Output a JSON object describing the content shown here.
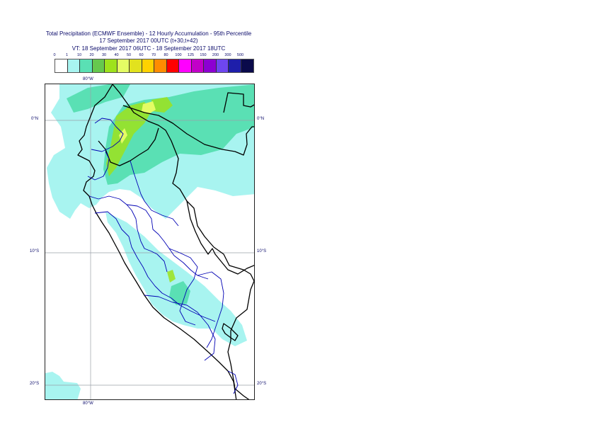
{
  "title": {
    "line1": "Total Precipitation (ECMWF Ensemble) - 12 Hourly Accumulation - 95th Percentile",
    "line2": "17 September 2017 00UTC (t+30,t+42)",
    "line3": "VT: 18 September 2017 06UTC - 18 September 2017 18UTC"
  },
  "legend": {
    "ticks": [
      "0",
      "1",
      "10",
      "20",
      "30",
      "40",
      "50",
      "60",
      "70",
      "80",
      "100",
      "125",
      "150",
      "200",
      "300",
      "500"
    ],
    "colors": [
      "#ffffff",
      "#a8f4f0",
      "#5ae0b4",
      "#66c84e",
      "#9ee21c",
      "#e4fc64",
      "#e2e21e",
      "#ffd200",
      "#ff8c00",
      "#ff0000",
      "#ff00ff",
      "#c200c8",
      "#8c00d2",
      "#6e46f0",
      "#1e1eaa",
      "#0a0a4b"
    ]
  },
  "axes": {
    "lon_top": "80°W",
    "lon_bottom": "80°W",
    "lat_labels": [
      "0°N",
      "10°S",
      "20°S"
    ]
  },
  "map": {
    "colors": {
      "land_border": "#000000",
      "regional_border": "#0000b4",
      "gridline": "#9aa0a8",
      "light_precip": "#a8f4f0",
      "moderate_precip": "#5ae0b4",
      "heavier_precip": "#9ee21c",
      "peak_precip": "#e4fc64"
    }
  }
}
